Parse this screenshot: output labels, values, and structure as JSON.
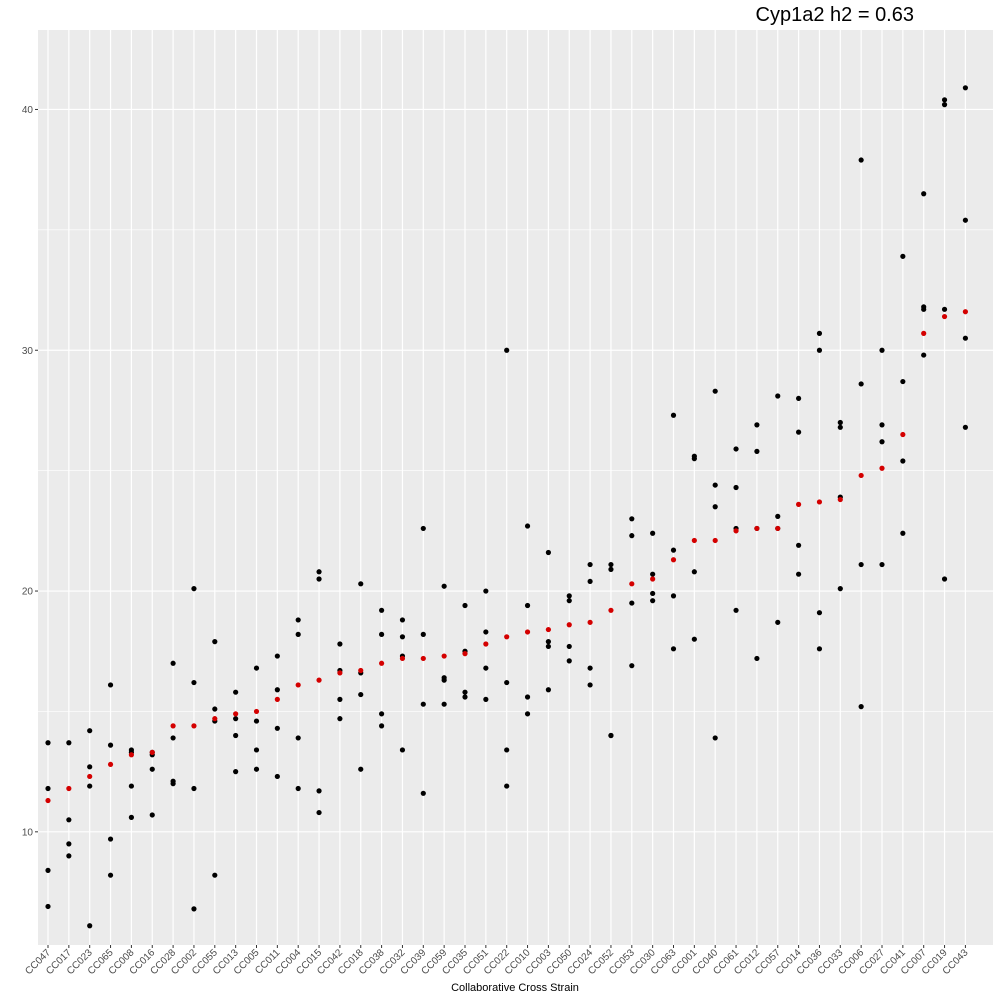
{
  "chart_data": {
    "type": "scatter",
    "title": "Cyp1a2 h2 = 0.63",
    "xlabel": "Collaborative Cross Strain",
    "ylabel": "",
    "ylim": [
      5.3,
      43.3
    ],
    "yticks": [
      10,
      20,
      30,
      40
    ],
    "grid": true,
    "legend": "none",
    "colors": {
      "observed": "#000000",
      "mean": "#d40000",
      "panel": "#ebebeb",
      "grid": "#ffffff"
    },
    "categories": [
      "CC047",
      "CC017",
      "CC023",
      "CC065",
      "CC008",
      "CC016",
      "CC028",
      "CC002",
      "CC055",
      "CC013",
      "CC005",
      "CC011",
      "CC004",
      "CC015",
      "CC042",
      "CC018",
      "CC038",
      "CC032",
      "CC039",
      "CC059",
      "CC035",
      "CC051",
      "CC022",
      "CC010",
      "CC003",
      "CC050",
      "CC024",
      "CC052",
      "CC053",
      "CC030",
      "CC063",
      "CC001",
      "CC040",
      "CC061",
      "CC012",
      "CC057",
      "CC014",
      "CC036",
      "CC033",
      "CC006",
      "CC027",
      "CC041",
      "CC007",
      "CC019",
      "CC043"
    ],
    "points": [
      [
        13.7,
        11.8,
        8.4,
        6.9
      ],
      [
        13.7,
        10.5,
        9.5,
        9.0
      ],
      [
        14.2,
        12.7,
        11.9,
        6.1
      ],
      [
        16.1,
        13.6,
        9.7,
        8.2
      ],
      [
        13.4,
        13.3,
        11.9,
        10.6
      ],
      [
        13.3,
        13.2,
        12.6,
        10.7
      ],
      [
        17.0,
        13.9,
        12.1,
        12.0
      ],
      [
        20.1,
        16.2,
        11.8,
        6.8
      ],
      [
        17.9,
        15.1,
        14.6,
        8.2
      ],
      [
        15.8,
        14.7,
        14.0,
        12.5
      ],
      [
        16.8,
        14.6,
        13.4,
        12.6
      ],
      [
        17.3,
        15.9,
        14.3,
        12.3
      ],
      [
        18.8,
        18.2,
        13.9,
        11.8
      ],
      [
        20.8,
        20.5,
        11.7,
        10.8
      ],
      [
        17.8,
        16.7,
        15.5,
        14.7
      ],
      [
        20.3,
        16.6,
        15.7,
        12.6
      ],
      [
        19.2,
        18.2,
        14.9,
        14.4
      ],
      [
        18.8,
        18.1,
        17.3,
        13.4
      ],
      [
        22.6,
        18.2,
        15.3,
        11.6
      ],
      [
        20.2,
        16.4,
        16.3,
        15.3
      ],
      [
        19.4,
        17.5,
        15.8,
        15.6
      ],
      [
        20.0,
        18.3,
        16.8,
        15.5
      ],
      [
        30.0,
        16.2,
        13.4,
        11.9
      ],
      [
        22.7,
        19.4,
        15.6,
        14.9
      ],
      [
        21.6,
        17.9,
        17.7,
        15.9
      ],
      [
        19.8,
        19.6,
        17.7,
        17.1
      ],
      [
        21.1,
        20.4,
        16.8,
        16.1
      ],
      [
        21.1,
        20.9,
        14.0,
        14.0
      ],
      [
        23.0,
        22.3,
        19.5,
        16.9
      ],
      [
        22.4,
        20.7,
        19.9,
        19.6
      ],
      [
        27.3,
        21.7,
        19.8,
        17.6
      ],
      [
        25.6,
        25.5,
        20.8,
        18.0
      ],
      [
        28.3,
        24.4,
        23.5,
        13.9
      ],
      [
        25.9,
        24.3,
        22.6,
        19.2
      ],
      [
        26.9,
        25.8,
        22.6,
        17.2
      ],
      [
        28.1,
        23.1,
        22.6,
        18.7
      ],
      [
        28.0,
        26.6,
        21.9,
        20.7
      ],
      [
        30.7,
        30.0,
        19.1,
        17.6
      ],
      [
        27.0,
        26.8,
        23.9,
        20.1
      ],
      [
        37.9,
        28.6,
        21.1,
        15.2
      ],
      [
        30.0,
        26.9,
        26.2,
        21.1
      ],
      [
        33.9,
        28.7,
        25.4,
        22.4
      ],
      [
        36.5,
        31.8,
        31.7,
        29.8
      ],
      [
        40.4,
        40.2,
        31.7,
        20.5
      ],
      [
        40.9,
        35.4,
        30.5,
        26.8
      ]
    ],
    "means": [
      11.3,
      11.8,
      12.3,
      12.8,
      13.2,
      13.3,
      14.4,
      14.4,
      14.7,
      14.9,
      15.0,
      15.5,
      16.1,
      16.3,
      16.6,
      16.7,
      17.0,
      17.2,
      17.2,
      17.3,
      17.4,
      17.8,
      18.1,
      18.3,
      18.4,
      18.6,
      18.7,
      19.2,
      20.3,
      20.5,
      21.3,
      22.1,
      22.1,
      22.5,
      22.6,
      22.6,
      23.6,
      23.7,
      23.8,
      24.8,
      25.1,
      26.5,
      30.7,
      31.4,
      31.6
    ]
  }
}
